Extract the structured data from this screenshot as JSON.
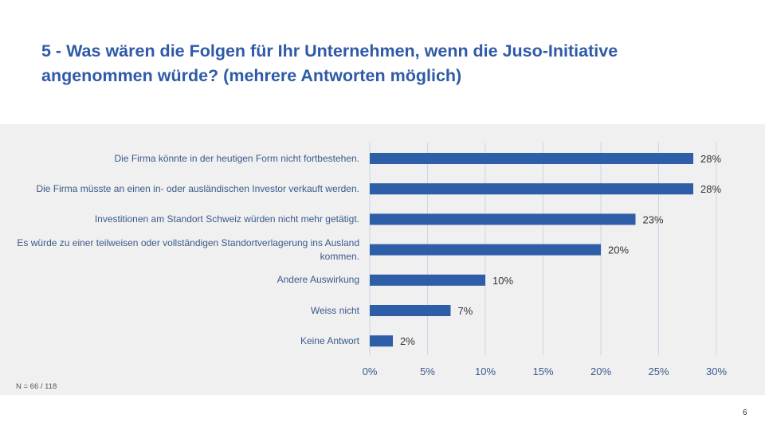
{
  "slide": {
    "title": "5 - Was wären die Folgen für Ihr Unternehmen, wenn die Juso-Initiative angenommen würde? (mehrere Antworten möglich)",
    "note": "N = 66 / 118",
    "page_number": "6"
  },
  "chart_data": {
    "type": "bar",
    "orientation": "horizontal",
    "categories": [
      "Die Firma könnte in der heutigen Form nicht fortbestehen.",
      "Die Firma müsste an einen in- oder ausländischen Investor verkauft werden.",
      "Investitionen am Standort Schweiz würden nicht mehr getätigt.",
      "Es würde zu einer teilweisen oder vollständigen Standortverlagerung ins Ausland kommen.",
      "Andere Auswirkung",
      "Weiss nicht",
      "Keine Antwort"
    ],
    "values": [
      28,
      28,
      23,
      20,
      10,
      7,
      2
    ],
    "data_labels": [
      "28%",
      "28%",
      "23%",
      "20%",
      "10%",
      "7%",
      "2%"
    ],
    "xlim": [
      0,
      30
    ],
    "x_ticks": [
      0,
      5,
      10,
      15,
      20,
      25,
      30
    ],
    "x_tick_labels": [
      "0%",
      "5%",
      "10%",
      "15%",
      "20%",
      "25%",
      "30%"
    ],
    "grid": "vertical",
    "bar_color": "#2e5ea8",
    "grid_color": "#c9d6e8"
  }
}
